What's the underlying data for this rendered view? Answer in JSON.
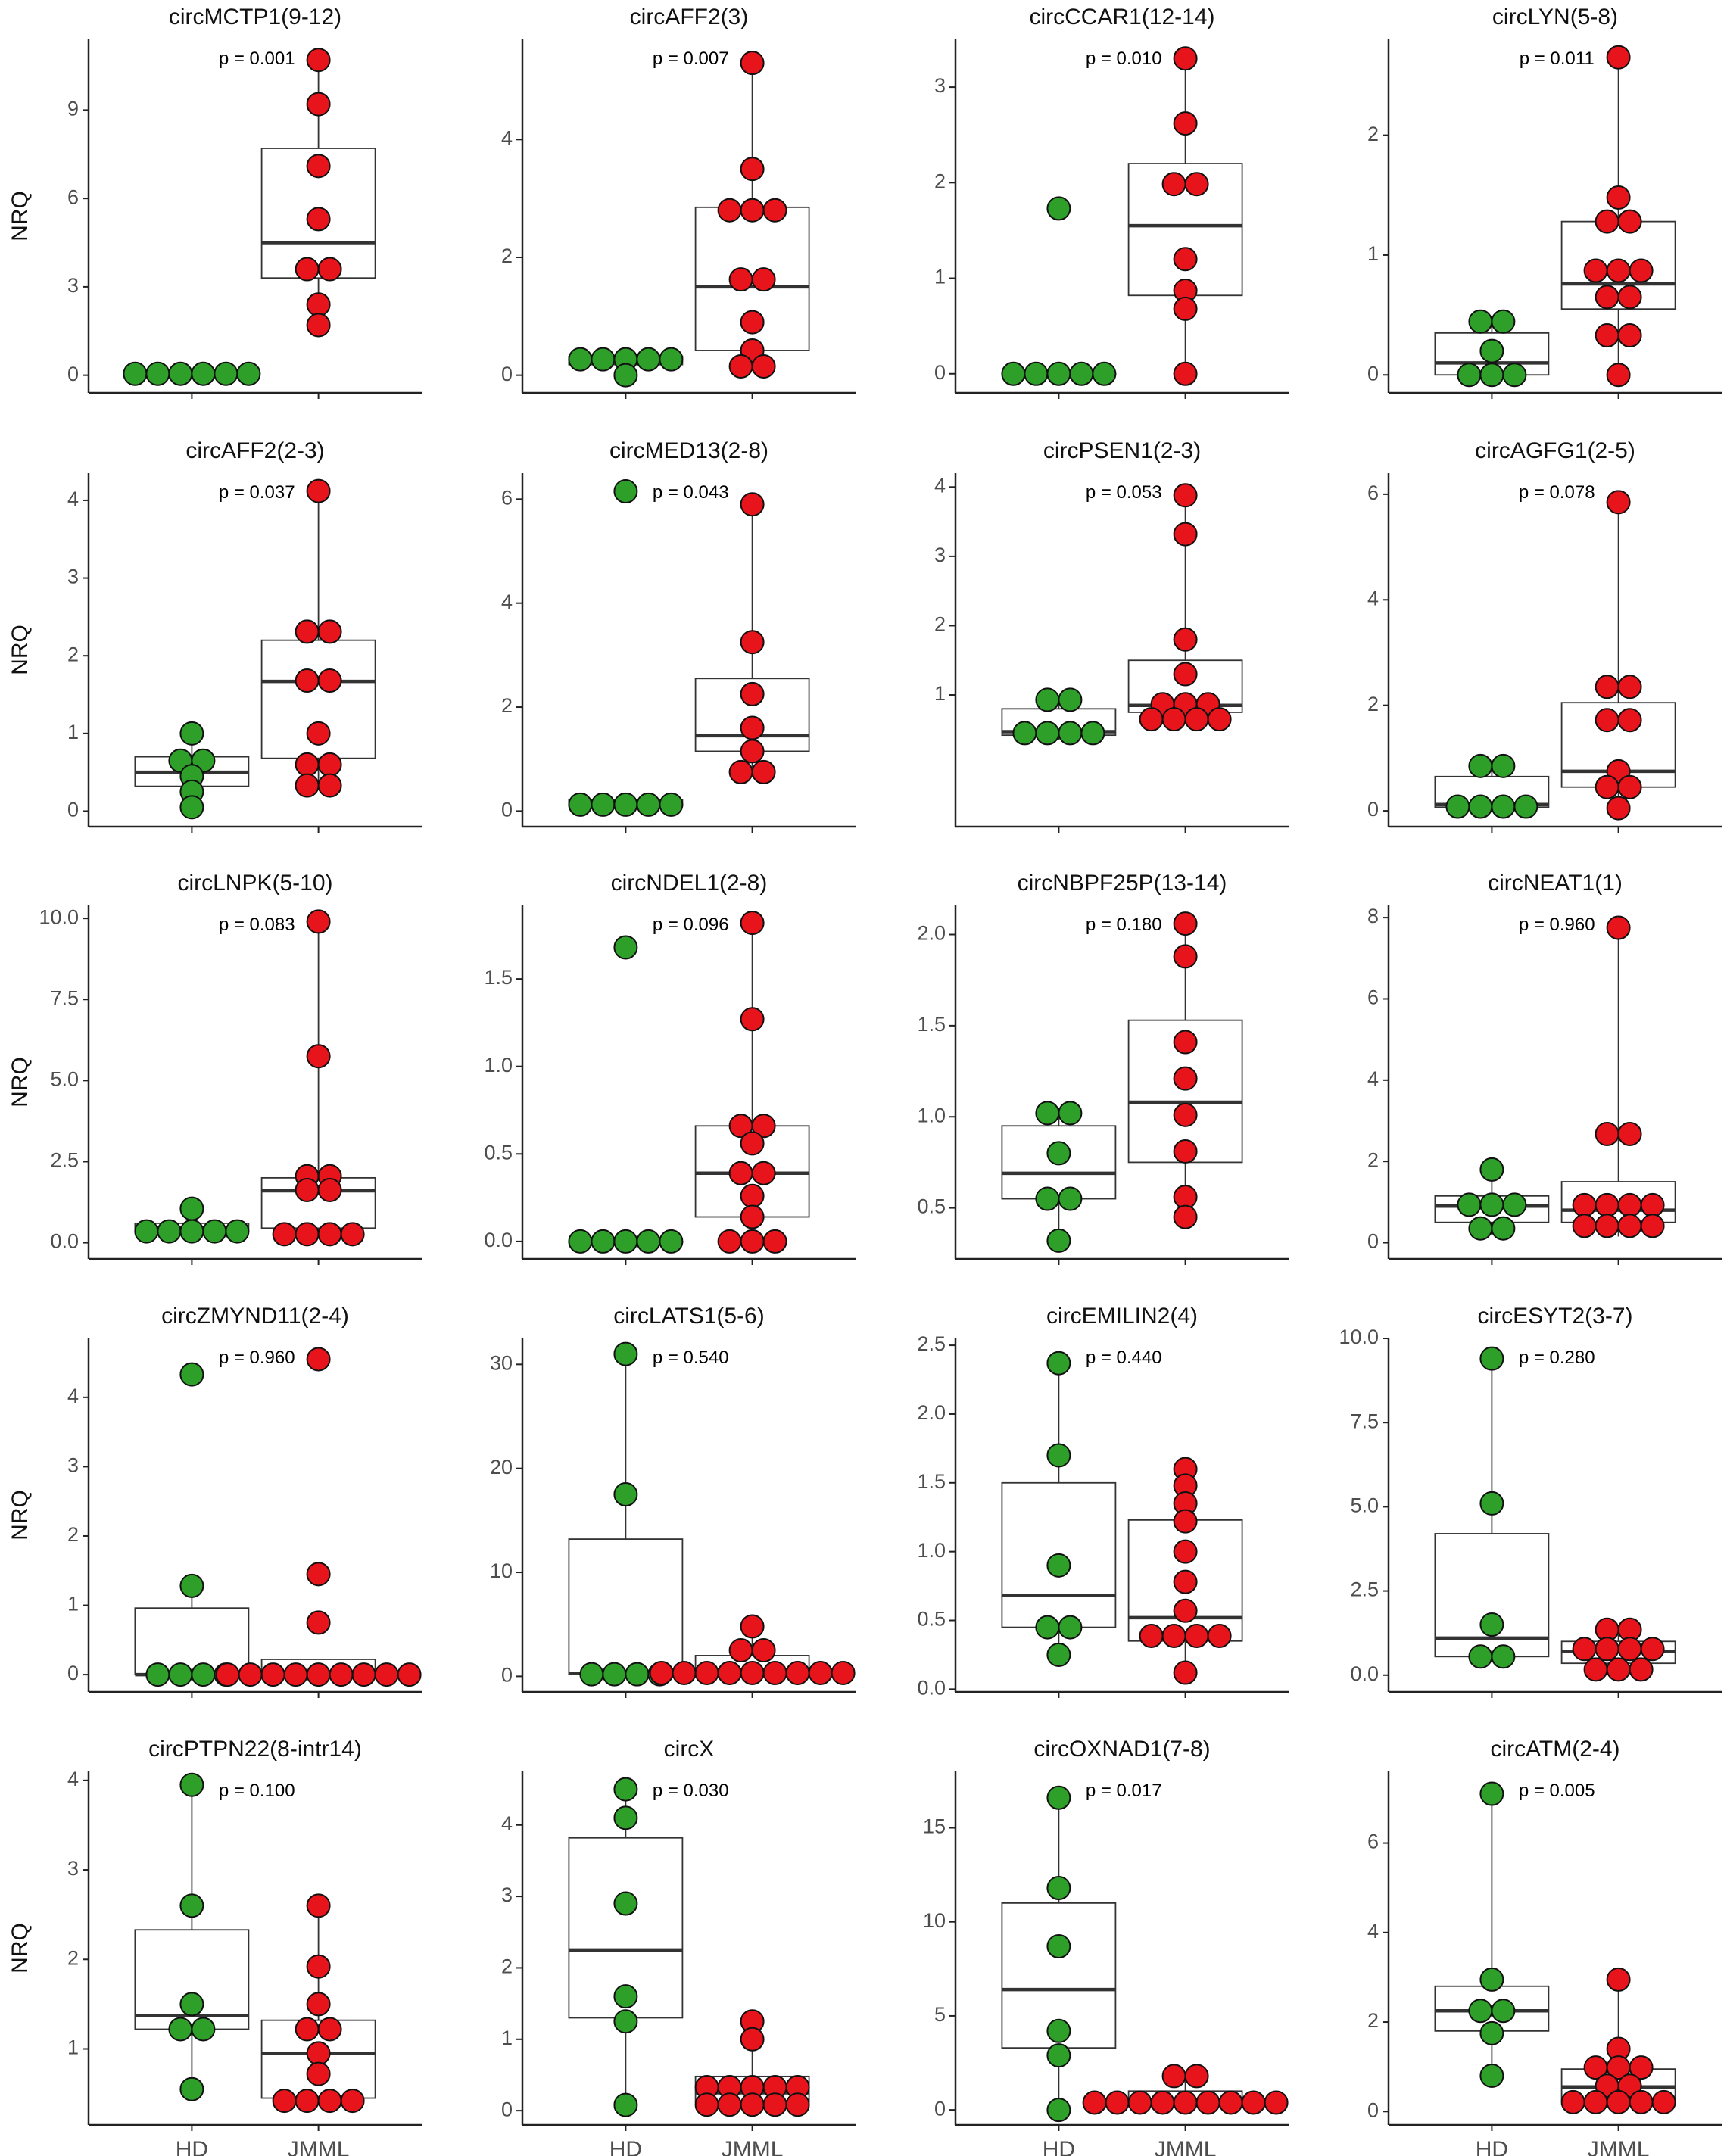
{
  "chart_data": {
    "type": "box",
    "ylabel": "NRQ",
    "groups": [
      "HD",
      "JMML"
    ],
    "colors": {
      "HD": "#2ea02a",
      "JMML": "#e8141c"
    },
    "panels": [
      {
        "title": "circMCTP1(9-12)",
        "p": "p = 0.001",
        "ylim": [
          -0.6,
          11.4
        ],
        "ticks": [
          0,
          3,
          6,
          9
        ],
        "tickLabels": [
          "0",
          "3",
          "6",
          "9"
        ],
        "hd": {
          "q1": 0.0,
          "med": 0.0,
          "q3": 0.0,
          "lo": 0.0,
          "hi": 0.0,
          "points": [
            0.05,
            0.05,
            0.05,
            0.05,
            0.05,
            0.05
          ]
        },
        "jmml": {
          "q1": 3.3,
          "med": 4.5,
          "q3": 7.7,
          "lo": 1.7,
          "hi": 10.7,
          "points": [
            10.7,
            9.2,
            7.1,
            5.3,
            3.6,
            3.6,
            2.4,
            1.7
          ]
        }
      },
      {
        "title": "circAFF2(3)",
        "p": "p = 0.007",
        "ylim": [
          -0.3,
          5.7
        ],
        "ticks": [
          0,
          2,
          4
        ],
        "tickLabels": [
          "0",
          "2",
          "4"
        ],
        "hd": {
          "q1": 0.18,
          "med": 0.24,
          "q3": 0.32,
          "lo": 0.0,
          "hi": 0.32,
          "points": [
            0.27,
            0.27,
            0.27,
            0.27,
            0.27,
            0.0
          ]
        },
        "jmml": {
          "q1": 0.42,
          "med": 1.5,
          "q3": 2.85,
          "lo": 0.15,
          "hi": 5.3,
          "points": [
            5.3,
            3.5,
            2.8,
            2.8,
            2.8,
            1.75,
            1.5,
            0.9,
            0.42,
            0.15,
            0.15
          ]
        }
      },
      {
        "title": "circCCAR1(12-14)",
        "p": "p = 0.010",
        "ylim": [
          -0.2,
          3.5
        ],
        "ticks": [
          0,
          1,
          2,
          3
        ],
        "tickLabels": [
          "0",
          "1",
          "2",
          "3"
        ],
        "hd": {
          "q1": 0.0,
          "med": 0.0,
          "q3": 0.0,
          "lo": 0.0,
          "hi": 0.0,
          "points": [
            1.73,
            0.0,
            0.0,
            0.0,
            0.0,
            0.0
          ]
        },
        "jmml": {
          "q1": 0.82,
          "med": 1.55,
          "q3": 2.2,
          "lo": 0.0,
          "hi": 3.3,
          "points": [
            3.3,
            2.62,
            2.05,
            1.92,
            1.2,
            0.87,
            0.68,
            0.0
          ]
        }
      },
      {
        "title": "circLYN(5-8)",
        "p": "p = 0.011",
        "ylim": [
          -0.15,
          2.8
        ],
        "ticks": [
          0,
          1,
          2
        ],
        "tickLabels": [
          "0",
          "1",
          "2"
        ],
        "hd": {
          "q1": 0.0,
          "med": 0.1,
          "q3": 0.35,
          "lo": 0.0,
          "hi": 0.49,
          "points": [
            0.49,
            0.4,
            0.2,
            0.0,
            0.0,
            0.0
          ]
        },
        "jmml": {
          "q1": 0.55,
          "med": 0.76,
          "q3": 1.28,
          "lo": 0.0,
          "hi": 2.65,
          "points": [
            2.65,
            1.48,
            1.28,
            1.28,
            0.87,
            0.87,
            0.87,
            0.65,
            0.65,
            0.33,
            0.33,
            0.0
          ]
        }
      },
      {
        "title": "circAFF2(2-3)",
        "p": "p = 0.037",
        "ylim": [
          -0.2,
          4.35
        ],
        "ticks": [
          0,
          1,
          2,
          3,
          4
        ],
        "tickLabels": [
          "0",
          "1",
          "2",
          "3",
          "4"
        ],
        "hd": {
          "q1": 0.32,
          "med": 0.5,
          "q3": 0.7,
          "lo": 0.05,
          "hi": 1.0,
          "points": [
            1.0,
            0.7,
            0.6,
            0.45,
            0.25,
            0.05
          ]
        },
        "jmml": {
          "q1": 0.68,
          "med": 1.67,
          "q3": 2.2,
          "lo": 0.33,
          "hi": 4.12,
          "points": [
            4.12,
            2.4,
            2.22,
            1.68,
            1.68,
            1.0,
            0.6,
            0.6,
            0.33,
            0.33
          ]
        }
      },
      {
        "title": "circMED13(2-8)",
        "p": "p = 0.043",
        "ylim": [
          -0.3,
          6.5
        ],
        "ticks": [
          0,
          2,
          4,
          6
        ],
        "tickLabels": [
          "0",
          "2",
          "4",
          "6"
        ],
        "hd": {
          "q1": 0.1,
          "med": 0.15,
          "q3": 0.22,
          "lo": 0.08,
          "hi": 0.22,
          "points": [
            6.15,
            0.22,
            0.1,
            0.1,
            0.1,
            0.1
          ]
        },
        "jmml": {
          "q1": 1.15,
          "med": 1.45,
          "q3": 2.55,
          "lo": 0.75,
          "hi": 5.9,
          "points": [
            5.9,
            3.25,
            2.25,
            1.6,
            1.15,
            0.75,
            0.75
          ]
        }
      },
      {
        "title": "circPSEN1(2-3)",
        "p": "p = 0.053",
        "ylim": [
          -0.9,
          4.2
        ],
        "ticks": [
          1,
          2,
          3,
          4
        ],
        "tickLabels": [
          "1",
          "2",
          "3",
          "4"
        ],
        "hd": {
          "q1": 0.42,
          "med": 0.47,
          "q3": 0.8,
          "lo": 0.35,
          "hi": 0.93,
          "points": [
            0.93,
            0.93,
            0.55,
            0.55,
            0.35,
            0.35
          ]
        },
        "jmml": {
          "q1": 0.75,
          "med": 0.85,
          "q3": 1.5,
          "lo": 0.65,
          "hi": 3.88,
          "points": [
            3.88,
            3.32,
            1.8,
            1.3,
            0.9,
            0.85,
            0.85,
            0.65,
            0.65,
            0.65,
            0.65
          ]
        }
      },
      {
        "title": "circAGFG1(2-5)",
        "p": "p = 0.078",
        "ylim": [
          -0.3,
          6.4
        ],
        "ticks": [
          0,
          2,
          4,
          6
        ],
        "tickLabels": [
          "0",
          "2",
          "4",
          "6"
        ],
        "hd": {
          "q1": 0.07,
          "med": 0.12,
          "q3": 0.65,
          "lo": 0.05,
          "hi": 0.85,
          "points": [
            0.85,
            0.85,
            0.08,
            0.08,
            0.08,
            0.08
          ]
        },
        "jmml": {
          "q1": 0.45,
          "med": 0.75,
          "q3": 2.05,
          "lo": 0.05,
          "hi": 5.85,
          "points": [
            5.85,
            2.35,
            2.35,
            1.72,
            1.72,
            0.75,
            0.45,
            0.45,
            0.05
          ]
        }
      },
      {
        "title": "circLNPK(5-10)",
        "p": "p = 0.083",
        "ylim": [
          -0.5,
          10.4
        ],
        "ticks": [
          0,
          2.5,
          5,
          7.5,
          10
        ],
        "tickLabels": [
          "0.0",
          "2.5",
          "5.0",
          "7.5",
          "10.0"
        ],
        "hd": {
          "q1": 0.35,
          "med": 0.45,
          "q3": 0.6,
          "lo": 0.15,
          "hi": 1.05,
          "points": [
            1.05,
            0.55,
            0.45,
            0.45,
            0.15,
            0.15
          ]
        },
        "jmml": {
          "q1": 0.45,
          "med": 1.6,
          "q3": 2.0,
          "lo": 0.2,
          "hi": 9.9,
          "points": [
            9.9,
            5.75,
            2.25,
            1.85,
            1.75,
            1.5,
            0.45,
            0.2,
            0.2,
            0.2
          ]
        }
      },
      {
        "title": "circNDEL1(2-8)",
        "p": "p = 0.096",
        "ylim": [
          -0.1,
          1.92
        ],
        "ticks": [
          0,
          0.5,
          1.0,
          1.5
        ],
        "tickLabels": [
          "0.0",
          "0.5",
          "1.0",
          "1.5"
        ],
        "hd": {
          "q1": 0.0,
          "med": 0.0,
          "q3": 0.0,
          "lo": 0.0,
          "hi": 0.0,
          "points": [
            1.68,
            0.0,
            0.0,
            0.0,
            0.0,
            0.0
          ]
        },
        "jmml": {
          "q1": 0.14,
          "med": 0.39,
          "q3": 0.66,
          "lo": 0.0,
          "hi": 1.82,
          "points": [
            1.82,
            1.27,
            0.66,
            0.66,
            0.56,
            0.39,
            0.39,
            0.26,
            0.14,
            0.0,
            0.0,
            0.0
          ]
        }
      },
      {
        "title": "circNBPF25P(13-14)",
        "p": "p = 0.180",
        "ylim": [
          0.22,
          2.16
        ],
        "ticks": [
          0.5,
          1.0,
          1.5,
          2.0
        ],
        "tickLabels": [
          "0.5",
          "1.0",
          "1.5",
          "2.0"
        ],
        "hd": {
          "q1": 0.55,
          "med": 0.69,
          "q3": 0.95,
          "lo": 0.32,
          "hi": 1.05,
          "points": [
            1.05,
            0.99,
            0.8,
            0.55,
            0.55,
            0.32
          ]
        },
        "jmml": {
          "q1": 0.75,
          "med": 1.08,
          "q3": 1.53,
          "lo": 0.45,
          "hi": 2.06,
          "points": [
            2.06,
            1.88,
            1.41,
            1.21,
            1.01,
            0.81,
            0.56,
            0.45
          ]
        }
      },
      {
        "title": "circNEAT1(1)",
        "p": "p = 0.960",
        "ylim": [
          -0.4,
          8.3
        ],
        "ticks": [
          0,
          2,
          4,
          6,
          8
        ],
        "tickLabels": [
          "0",
          "2",
          "4",
          "6",
          "8"
        ],
        "hd": {
          "q1": 0.5,
          "med": 0.9,
          "q3": 1.15,
          "lo": 0.2,
          "hi": 1.8,
          "points": [
            1.8,
            1.1,
            0.95,
            0.75,
            0.5,
            0.2
          ]
        },
        "jmml": {
          "q1": 0.5,
          "med": 0.8,
          "q3": 1.5,
          "lo": 0.15,
          "hi": 7.75,
          "points": [
            7.75,
            2.8,
            2.55,
            1.05,
            1.05,
            0.8,
            0.8,
            0.5,
            0.5,
            0.5,
            0.15
          ]
        }
      },
      {
        "title": "circZMYND11(2-4)",
        "p": "p = 0.960",
        "ylim": [
          -0.25,
          4.85
        ],
        "ticks": [
          0,
          1,
          2,
          3,
          4
        ],
        "tickLabels": [
          "0",
          "1",
          "2",
          "3",
          "4"
        ],
        "hd": {
          "q1": 0.0,
          "med": 0.0,
          "q3": 0.96,
          "lo": 0.0,
          "hi": 1.28,
          "points": [
            4.33,
            1.28,
            0.0,
            0.0,
            0.0,
            0.0
          ]
        },
        "jmml": {
          "q1": 0.0,
          "med": 0.0,
          "q3": 0.22,
          "lo": 0.0,
          "hi": 0.22,
          "points": [
            4.55,
            1.45,
            0.75,
            0.0,
            0.0,
            0.0,
            0.0,
            0.0,
            0.0,
            0.0,
            0.0,
            0.0
          ]
        }
      },
      {
        "title": "circLATS1(5-6)",
        "p": "p = 0.540",
        "ylim": [
          -1.5,
          32.5
        ],
        "ticks": [
          0,
          10,
          20,
          30
        ],
        "tickLabels": [
          "0",
          "10",
          "20",
          "30"
        ],
        "hd": {
          "q1": 0.2,
          "med": 0.3,
          "q3": 13.2,
          "lo": 0.1,
          "hi": 31.0,
          "points": [
            31.0,
            17.5,
            0.2,
            0.2,
            0.2,
            0.2
          ]
        },
        "jmml": {
          "q1": 0.2,
          "med": 0.5,
          "q3": 2.0,
          "lo": 0.1,
          "hi": 4.8,
          "points": [
            4.8,
            3.1,
            1.9,
            1.0,
            0.5,
            0.2,
            0.2,
            0.2,
            0.2,
            0.2,
            0.2,
            0.2
          ]
        }
      },
      {
        "title": "circEMILIN2(4)",
        "p": "p = 0.440",
        "ylim": [
          -0.02,
          2.55
        ],
        "ticks": [
          0,
          0.5,
          1.0,
          1.5,
          2.0,
          2.5
        ],
        "tickLabels": [
          "0.0",
          "0.5",
          "1.0",
          "1.5",
          "2.0",
          "2.5"
        ],
        "hd": {
          "q1": 0.45,
          "med": 0.68,
          "q3": 1.5,
          "lo": 0.25,
          "hi": 2.37,
          "points": [
            2.37,
            1.7,
            0.9,
            0.45,
            0.45,
            0.25
          ]
        },
        "jmml": {
          "q1": 0.35,
          "med": 0.52,
          "q3": 1.23,
          "lo": 0.12,
          "hi": 1.6,
          "points": [
            1.6,
            1.48,
            1.35,
            1.22,
            1.0,
            0.78,
            0.57,
            0.45,
            0.4,
            0.35,
            0.35,
            0.12
          ]
        }
      },
      {
        "title": "circESYT2(3-7)",
        "p": "p = 0.280",
        "ylim": [
          -0.5,
          10.0
        ],
        "ticks": [
          0,
          2.5,
          5,
          7.5,
          10
        ],
        "tickLabels": [
          "0.0",
          "2.5",
          "5.0",
          "7.5",
          "10.0"
        ],
        "hd": {
          "q1": 0.55,
          "med": 1.1,
          "q3": 4.2,
          "lo": 0.4,
          "hi": 9.4,
          "points": [
            9.4,
            5.1,
            1.5,
            0.65,
            0.45
          ]
        },
        "jmml": {
          "q1": 0.35,
          "med": 0.7,
          "q3": 1.0,
          "lo": 0.0,
          "hi": 1.5,
          "points": [
            1.5,
            1.2,
            1.0,
            0.75,
            0.7,
            0.65,
            0.35,
            0.15,
            0.0
          ]
        }
      },
      {
        "title": "circPTPN22(8-intr14)",
        "p": "p = 0.100",
        "ylim": [
          0.15,
          4.1
        ],
        "ticks": [
          1,
          2,
          3,
          4
        ],
        "tickLabels": [
          "1",
          "2",
          "3",
          "4"
        ],
        "hd": {
          "q1": 1.22,
          "med": 1.37,
          "q3": 2.33,
          "lo": 0.55,
          "hi": 3.95,
          "points": [
            3.95,
            2.6,
            1.5,
            1.22,
            1.22,
            0.55
          ]
        },
        "jmml": {
          "q1": 0.45,
          "med": 0.95,
          "q3": 1.32,
          "lo": 0.42,
          "hi": 2.6,
          "points": [
            2.6,
            1.92,
            1.5,
            1.22,
            1.22,
            0.95,
            0.72,
            0.42,
            0.42,
            0.42,
            0.42
          ]
        }
      },
      {
        "title": "circX",
        "p": "p = 0.030",
        "ylim": [
          -0.2,
          4.75
        ],
        "ticks": [
          0,
          1,
          2,
          3,
          4
        ],
        "tickLabels": [
          "0",
          "1",
          "2",
          "3",
          "4"
        ],
        "hd": {
          "q1": 1.3,
          "med": 2.25,
          "q3": 3.82,
          "lo": 0.08,
          "hi": 4.5,
          "points": [
            4.5,
            4.1,
            2.9,
            1.6,
            1.25,
            0.08
          ]
        },
        "jmml": {
          "q1": 0.12,
          "med": 0.25,
          "q3": 0.48,
          "lo": 0.06,
          "hi": 1.25,
          "points": [
            1.25,
            1.0,
            0.45,
            0.45,
            0.25,
            0.25,
            0.25,
            0.12,
            0.12,
            0.06,
            0.06,
            0.06
          ]
        }
      },
      {
        "title": "circOXNAD1(7-8)",
        "p": "p = 0.017",
        "ylim": [
          -0.8,
          18.0
        ],
        "ticks": [
          0,
          5,
          10,
          15
        ],
        "tickLabels": [
          "0",
          "5",
          "10",
          "15"
        ],
        "hd": {
          "q1": 3.3,
          "med": 6.4,
          "q3": 11.0,
          "lo": 0.0,
          "hi": 16.6,
          "points": [
            16.6,
            11.8,
            8.7,
            4.2,
            2.9,
            0.0
          ]
        },
        "jmml": {
          "q1": 0.2,
          "med": 0.35,
          "q3": 1.0,
          "lo": 0.1,
          "hi": 1.8,
          "points": [
            1.8,
            1.8,
            0.9,
            0.5,
            0.3,
            0.3,
            0.3,
            0.3,
            0.3,
            0.3,
            0.3
          ]
        }
      },
      {
        "title": "circATM(2-4)",
        "p": "p = 0.005",
        "ylim": [
          -0.3,
          7.6
        ],
        "ticks": [
          0,
          2,
          4,
          6
        ],
        "tickLabels": [
          "0",
          "2",
          "4",
          "6"
        ],
        "hd": {
          "q1": 1.8,
          "med": 2.25,
          "q3": 2.8,
          "lo": 0.8,
          "hi": 7.1,
          "points": [
            7.1,
            2.95,
            2.25,
            2.25,
            1.75,
            0.8
          ]
        },
        "jmml": {
          "q1": 0.25,
          "med": 0.55,
          "q3": 0.95,
          "lo": 0.2,
          "hi": 2.95,
          "points": [
            2.95,
            1.4,
            1.0,
            1.0,
            0.95,
            0.6,
            0.55,
            0.25,
            0.2,
            0.2,
            0.2,
            0.2
          ]
        }
      }
    ]
  }
}
